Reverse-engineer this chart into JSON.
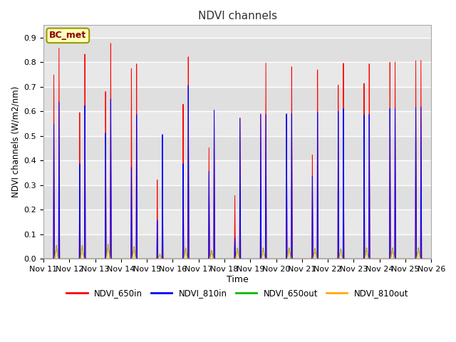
{
  "title": "NDVI channels",
  "xlabel": "Time",
  "ylabel": "NDVI channels (W/m2/nm)",
  "ylim": [
    0,
    0.95
  ],
  "annotation": "BC_met",
  "legend_labels": [
    "NDVI_650in",
    "NDVI_810in",
    "NDVI_650out",
    "NDVI_810out"
  ],
  "line_colors": [
    "#ff0000",
    "#0000ff",
    "#00bb00",
    "#ffaa00"
  ],
  "x_tick_labels": [
    "Nov 11",
    "Nov 12",
    "Nov 13",
    "Nov 14",
    "Nov 15",
    "Nov 16",
    "Nov 17",
    "Nov 18",
    "Nov 19",
    "Nov 20",
    "Nov 21",
    "Nov 22",
    "Nov 23",
    "Nov 24",
    "Nov 25",
    "Nov 26"
  ],
  "background_color": "#ffffff",
  "axes_bg_color": "#e8e8e8",
  "grid_color": "#ffffff",
  "peak_heights_650in": [
    0.86,
    0.84,
    0.89,
    0.81,
    0.36,
    0.85,
    0.63,
    0.6,
    0.84,
    0.82,
    0.8,
    0.82,
    0.81,
    0.81,
    0.81
  ],
  "peak_heights2_650in": [
    0.75,
    0.6,
    0.69,
    0.79,
    0.33,
    0.65,
    0.47,
    0.27,
    0.62,
    0.62,
    0.44,
    0.73,
    0.73,
    0.81,
    0.81
  ],
  "peak_heights_810in": [
    0.64,
    0.63,
    0.66,
    0.6,
    0.52,
    0.73,
    0.63,
    0.6,
    0.62,
    0.62,
    0.62,
    0.63,
    0.6,
    0.62,
    0.62
  ],
  "peak_heights2_810in": [
    0.55,
    0.39,
    0.52,
    0.38,
    0.16,
    0.4,
    0.37,
    0.09,
    0.62,
    0.62,
    0.35,
    0.62,
    0.6,
    0.62,
    0.62
  ],
  "peak_heights_650out": [
    0.055,
    0.055,
    0.06,
    0.05,
    0.02,
    0.045,
    0.035,
    0.045,
    0.045,
    0.045,
    0.042,
    0.04,
    0.045,
    0.045,
    0.045
  ],
  "peak_heights_810out": [
    0.05,
    0.05,
    0.055,
    0.045,
    0.018,
    0.04,
    0.03,
    0.04,
    0.04,
    0.04,
    0.038,
    0.036,
    0.04,
    0.04,
    0.04
  ],
  "num_days": 15,
  "samples_per_day": 500
}
